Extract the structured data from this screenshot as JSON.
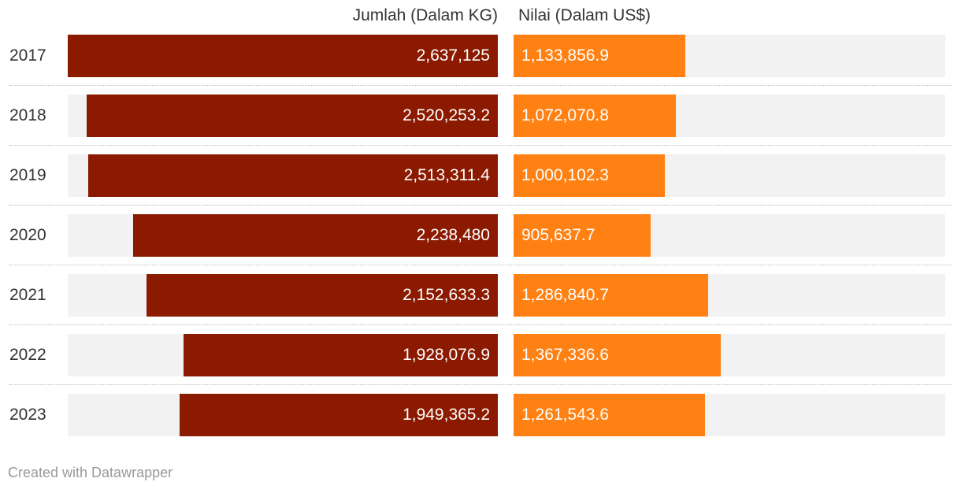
{
  "headers": {
    "left": "Jumlah (Dalam KG)",
    "right": "Nilai (Dalam US$)"
  },
  "footer": "Created with Datawrapper",
  "colors": {
    "left_bar": "#8b1a00",
    "right_bar": "#ff8113",
    "track": "#f2f2f2"
  },
  "chart_data": {
    "type": "bar",
    "categories": [
      "2017",
      "2018",
      "2019",
      "2020",
      "2021",
      "2022",
      "2023"
    ],
    "series": [
      {
        "name": "Jumlah (Dalam KG)",
        "values": [
          2637125,
          2520253.2,
          2513311.4,
          2238480,
          2152633.3,
          1928076.9,
          1949365.2
        ],
        "labels": [
          "2,637,125",
          "2,520,253.2",
          "2,513,311.4",
          "2,238,480",
          "2,152,633.3",
          "1,928,076.9",
          "1,949,365.2"
        ],
        "direction": "right-aligned"
      },
      {
        "name": "Nilai (Dalam US$)",
        "values": [
          1133856.9,
          1072070.8,
          1000102.3,
          905637.7,
          1286840.7,
          1367336.6,
          1261543.6
        ],
        "labels": [
          "1,133,856.9",
          "1,072,070.8",
          "1,000,102.3",
          "905,637.7",
          "1,286,840.7",
          "1,367,336.6",
          "1,261,543.6"
        ],
        "direction": "left-aligned"
      }
    ],
    "xlim_left": [
      0,
      2637125
    ],
    "xlim_right": [
      0,
      2850000
    ],
    "grid": false,
    "legend": "none"
  }
}
